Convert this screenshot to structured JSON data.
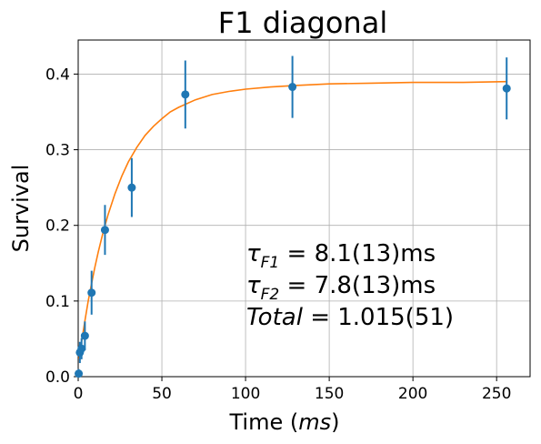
{
  "chart_data": {
    "type": "scatter",
    "title": "F1 diagonal",
    "xlabel": {
      "text": "Time (",
      "italic": "ms",
      "close": ")"
    },
    "ylabel": "Survival",
    "xlim": [
      0,
      270
    ],
    "ylim": [
      0,
      0.445
    ],
    "xticks": [
      0,
      50,
      100,
      150,
      200,
      250
    ],
    "yticks": [
      0.0,
      0.1,
      0.2,
      0.3,
      0.4
    ],
    "xtick_labels": [
      "0",
      "50",
      "100",
      "150",
      "200",
      "250"
    ],
    "ytick_labels": [
      "0.0",
      "0.1",
      "0.2",
      "0.3",
      "0.4"
    ],
    "grid": true,
    "colors": {
      "points": "#1f77b4",
      "fit": "#ff7f0e",
      "grid": "#b0b0b0"
    },
    "points": {
      "x": [
        0.3,
        1,
        2,
        4,
        8,
        16,
        32,
        64,
        128,
        256
      ],
      "y": [
        0.004,
        0.032,
        0.037,
        0.054,
        0.111,
        0.194,
        0.25,
        0.373,
        0.383,
        0.381
      ],
      "yerr": [
        0.006,
        0.014,
        0.014,
        0.019,
        0.029,
        0.033,
        0.039,
        0.045,
        0.041,
        0.041
      ]
    },
    "fit": {
      "x": [
        0.5,
        2,
        4,
        6,
        8,
        10,
        12,
        15,
        18,
        22,
        26,
        30,
        35,
        40,
        45,
        50,
        55,
        60,
        70,
        80,
        90,
        100,
        115,
        130,
        150,
        175,
        200,
        230,
        256
      ],
      "y": [
        0.024,
        0.046,
        0.074,
        0.1,
        0.123,
        0.145,
        0.165,
        0.192,
        0.215,
        0.242,
        0.265,
        0.284,
        0.303,
        0.319,
        0.331,
        0.341,
        0.35,
        0.356,
        0.366,
        0.373,
        0.377,
        0.38,
        0.383,
        0.385,
        0.387,
        0.388,
        0.389,
        0.389,
        0.39
      ]
    },
    "annotations": [
      {
        "base": "τ",
        "sub": "F1",
        "rest": " = 8.1(13)ms"
      },
      {
        "base": "τ",
        "sub": "F2",
        "rest": " = 7.8(13)ms"
      },
      {
        "base": "Total",
        "sub": "",
        "rest": " = 1.015(51)"
      }
    ]
  }
}
